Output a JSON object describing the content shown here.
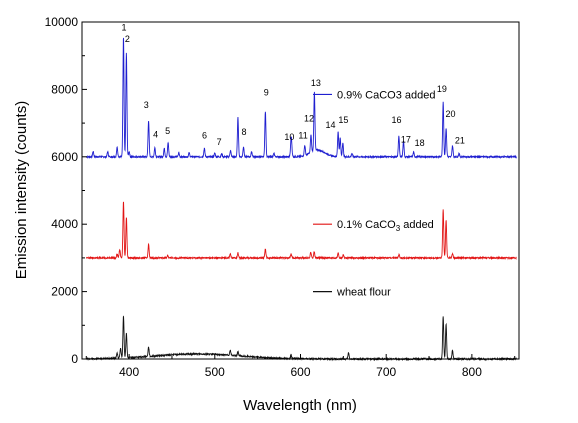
{
  "chart_data": {
    "type": "line",
    "xlabel": "Wavelength (nm)",
    "ylabel": "Emission intensity (counts)",
    "xlim": [
      345,
      855
    ],
    "ylim": [
      0,
      10000
    ],
    "x_ticks": [
      400,
      500,
      600,
      700,
      800
    ],
    "y_ticks": [
      0,
      2000,
      4000,
      6000,
      8000,
      10000
    ],
    "x_tick_labels": [
      "400",
      "500",
      "600",
      "700",
      "800"
    ],
    "y_tick_labels": [
      "0",
      "2000",
      "4000",
      "6000",
      "8000",
      "10000"
    ],
    "grid": false,
    "legend_placement": "per-series, right of centre",
    "series": [
      {
        "name": "0.9% CaCO3 added",
        "color": "#1f1fd0",
        "baseline": 6000,
        "hump": {
          "center": 620,
          "width": 12,
          "height": 200
        },
        "peaks": [
          [
            358,
            160
          ],
          [
            375,
            150
          ],
          [
            386,
            280
          ],
          [
            393.4,
            3560
          ],
          [
            396.8,
            3080
          ],
          [
            400,
            160
          ],
          [
            422.7,
            1080
          ],
          [
            430,
            270
          ],
          [
            441,
            250
          ],
          [
            445.5,
            420
          ],
          [
            458,
            110
          ],
          [
            470,
            120
          ],
          [
            487.8,
            250
          ],
          [
            500,
            110
          ],
          [
            508,
            90
          ],
          [
            518.3,
            190
          ],
          [
            527,
            1160
          ],
          [
            533.5,
            300
          ],
          [
            543,
            150
          ],
          [
            559,
            1350
          ],
          [
            569,
            100
          ],
          [
            588.9,
            400
          ],
          [
            589.6,
            300
          ],
          [
            605,
            300
          ],
          [
            612.2,
            520
          ],
          [
            616.2,
            1760
          ],
          [
            643.9,
            750
          ],
          [
            646.3,
            560
          ],
          [
            649.4,
            420
          ],
          [
            660,
            100
          ],
          [
            714.8,
            620
          ],
          [
            720.2,
            460
          ],
          [
            732,
            130
          ],
          [
            766.5,
            1620
          ],
          [
            769.9,
            850
          ],
          [
            777.4,
            330
          ],
          [
            785,
            100
          ]
        ],
        "annotations": [
          {
            "label": "1",
            "x": 394,
            "y": 9750
          },
          {
            "label": "2",
            "x": 398,
            "y": 9400
          },
          {
            "label": "3",
            "x": 420,
            "y": 7450
          },
          {
            "label": "4",
            "x": 431,
            "y": 6580
          },
          {
            "label": "5",
            "x": 445,
            "y": 6680
          },
          {
            "label": "6",
            "x": 488,
            "y": 6550
          },
          {
            "label": "7",
            "x": 505,
            "y": 6350
          },
          {
            "label": "8",
            "x": 534,
            "y": 6650
          },
          {
            "label": "9",
            "x": 560,
            "y": 7820
          },
          {
            "label": "10",
            "x": 587,
            "y": 6500
          },
          {
            "label": "11",
            "x": 603,
            "y": 6550
          },
          {
            "label": "12",
            "x": 610,
            "y": 7050
          },
          {
            "label": "13",
            "x": 618,
            "y": 8100
          },
          {
            "label": "14",
            "x": 635,
            "y": 6850
          },
          {
            "label": "15",
            "x": 650,
            "y": 7000
          },
          {
            "label": "16",
            "x": 712,
            "y": 7000
          },
          {
            "label": "17",
            "x": 723,
            "y": 6420
          },
          {
            "label": "18",
            "x": 739,
            "y": 6320
          },
          {
            "label": "19",
            "x": 765,
            "y": 7920
          },
          {
            "label": "20",
            "x": 775,
            "y": 7180
          },
          {
            "label": "21",
            "x": 786,
            "y": 6400
          }
        ]
      },
      {
        "name": "0.1% CaCO3 added",
        "color": "#e21414",
        "baseline": 3000,
        "hump": {
          "center": 610,
          "width": 20,
          "height": 0
        },
        "peaks": [
          [
            386,
            120
          ],
          [
            389,
            250
          ],
          [
            393.4,
            1700
          ],
          [
            396.8,
            1210
          ],
          [
            422.7,
            400
          ],
          [
            445,
            80
          ],
          [
            518,
            130
          ],
          [
            527,
            160
          ],
          [
            559,
            260
          ],
          [
            589,
            120
          ],
          [
            612,
            170
          ],
          [
            616,
            180
          ],
          [
            644,
            150
          ],
          [
            650,
            100
          ],
          [
            715,
            100
          ],
          [
            766.5,
            1430
          ],
          [
            769.9,
            1110
          ],
          [
            777.4,
            120
          ]
        ]
      },
      {
        "name": "wheat flour",
        "color": "#111111",
        "baseline": 0,
        "hump": {
          "center": 480,
          "width": 70,
          "height": 150
        },
        "peaks": [
          [
            386,
            150
          ],
          [
            390,
            300
          ],
          [
            393.4,
            1250
          ],
          [
            396.8,
            730
          ],
          [
            422.7,
            280
          ],
          [
            518,
            150
          ],
          [
            527,
            120
          ],
          [
            589,
            100
          ],
          [
            656,
            180
          ],
          [
            766.5,
            1260
          ],
          [
            769.9,
            1040
          ],
          [
            777.4,
            260
          ]
        ]
      }
    ],
    "legend": [
      {
        "text": "0.9% CaCO3 added",
        "series": 0,
        "y": 7850
      },
      {
        "text": "0.1% CaCO3 added",
        "series": 1,
        "y": 4000,
        "subscript_part": "3"
      },
      {
        "text": "wheat flour",
        "series": 2,
        "y": 2000
      }
    ]
  }
}
